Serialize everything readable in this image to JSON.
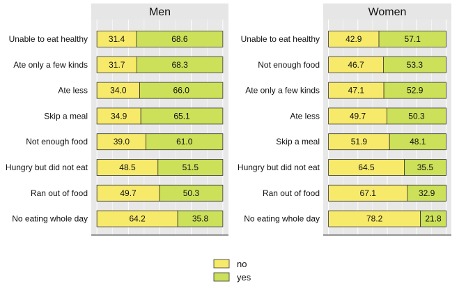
{
  "chart_data": [
    {
      "type": "bar",
      "stacked": true,
      "orientation": "horizontal",
      "title": "Men",
      "categories": [
        "Unable to eat healthy",
        "Ate only a few kinds",
        "Ate less",
        "Skip a meal",
        "Not enough food",
        "Hungry but did not eat",
        "Ran out of food",
        "No eating whole day"
      ],
      "series": [
        {
          "name": "no",
          "values": [
            31.4,
            31.7,
            34.0,
            34.9,
            39.0,
            48.5,
            49.7,
            64.2
          ]
        },
        {
          "name": "yes",
          "values": [
            68.6,
            68.3,
            66.0,
            65.1,
            61.0,
            51.5,
            50.3,
            35.8
          ]
        }
      ],
      "value_labels_no": [
        "31.4",
        "31.7",
        "34.0",
        "34.9",
        "39.0",
        "48.5",
        "49.7",
        "64.2"
      ],
      "value_labels_yes": [
        "68.6",
        "68.3",
        "66.0",
        "65.1",
        "61.0",
        "51.5",
        "50.3",
        "35.8"
      ],
      "xlim": [
        0,
        100
      ],
      "grid": true,
      "legend": "bottom"
    },
    {
      "type": "bar",
      "stacked": true,
      "orientation": "horizontal",
      "title": "Women",
      "categories": [
        "Unable to eat healthy",
        "Not enough food",
        "Ate only a few kinds",
        "Ate less",
        "Skip a meal",
        "Hungry but did not eat",
        "Ran out of food",
        "No eating whole day"
      ],
      "series": [
        {
          "name": "no",
          "values": [
            42.9,
            46.7,
            47.1,
            49.7,
            51.9,
            64.5,
            67.1,
            78.2
          ]
        },
        {
          "name": "yes",
          "values": [
            57.1,
            53.3,
            52.9,
            50.3,
            48.1,
            35.5,
            32.9,
            21.8
          ]
        }
      ],
      "value_labels_no": [
        "42.9",
        "46.7",
        "47.1",
        "49.7",
        "51.9",
        "64.5",
        "67.1",
        "78.2"
      ],
      "value_labels_yes": [
        "57.1",
        "53.3",
        "52.9",
        "50.3",
        "48.1",
        "35.5",
        "32.9",
        "21.8"
      ],
      "xlim": [
        0,
        100
      ],
      "grid": true,
      "legend": "bottom"
    }
  ],
  "legend": {
    "items": [
      {
        "label": "no",
        "color": "#f7ea6b"
      },
      {
        "label": "yes",
        "color": "#cde05a"
      }
    ]
  },
  "colors": {
    "no": "#f7ea6b",
    "yes": "#cde05a",
    "panel_bg": "#e8e8e8",
    "strip_bg": "#e6e6e6",
    "grid": "#ffffff",
    "bar_stroke": "#333333"
  }
}
